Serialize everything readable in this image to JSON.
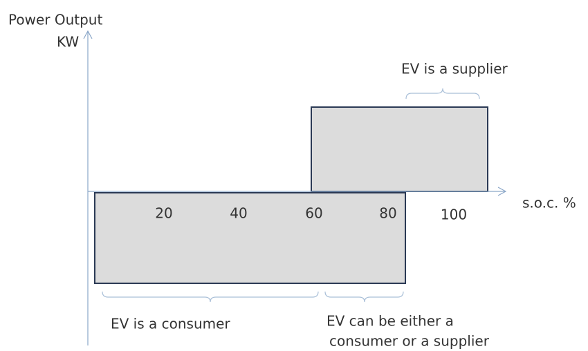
{
  "y_axis": {
    "label_line1": "Power Output",
    "label_line2": "KW"
  },
  "x_axis": {
    "label": "s.o.c. %",
    "tick_labels": [
      "20",
      "40",
      "60",
      "80",
      "100"
    ]
  },
  "annotations": {
    "supplier": "EV is a supplier",
    "consumer": "EV is a consumer",
    "either_line1": "EV can be either a",
    "either_line2": "consumer or a supplier"
  }
}
